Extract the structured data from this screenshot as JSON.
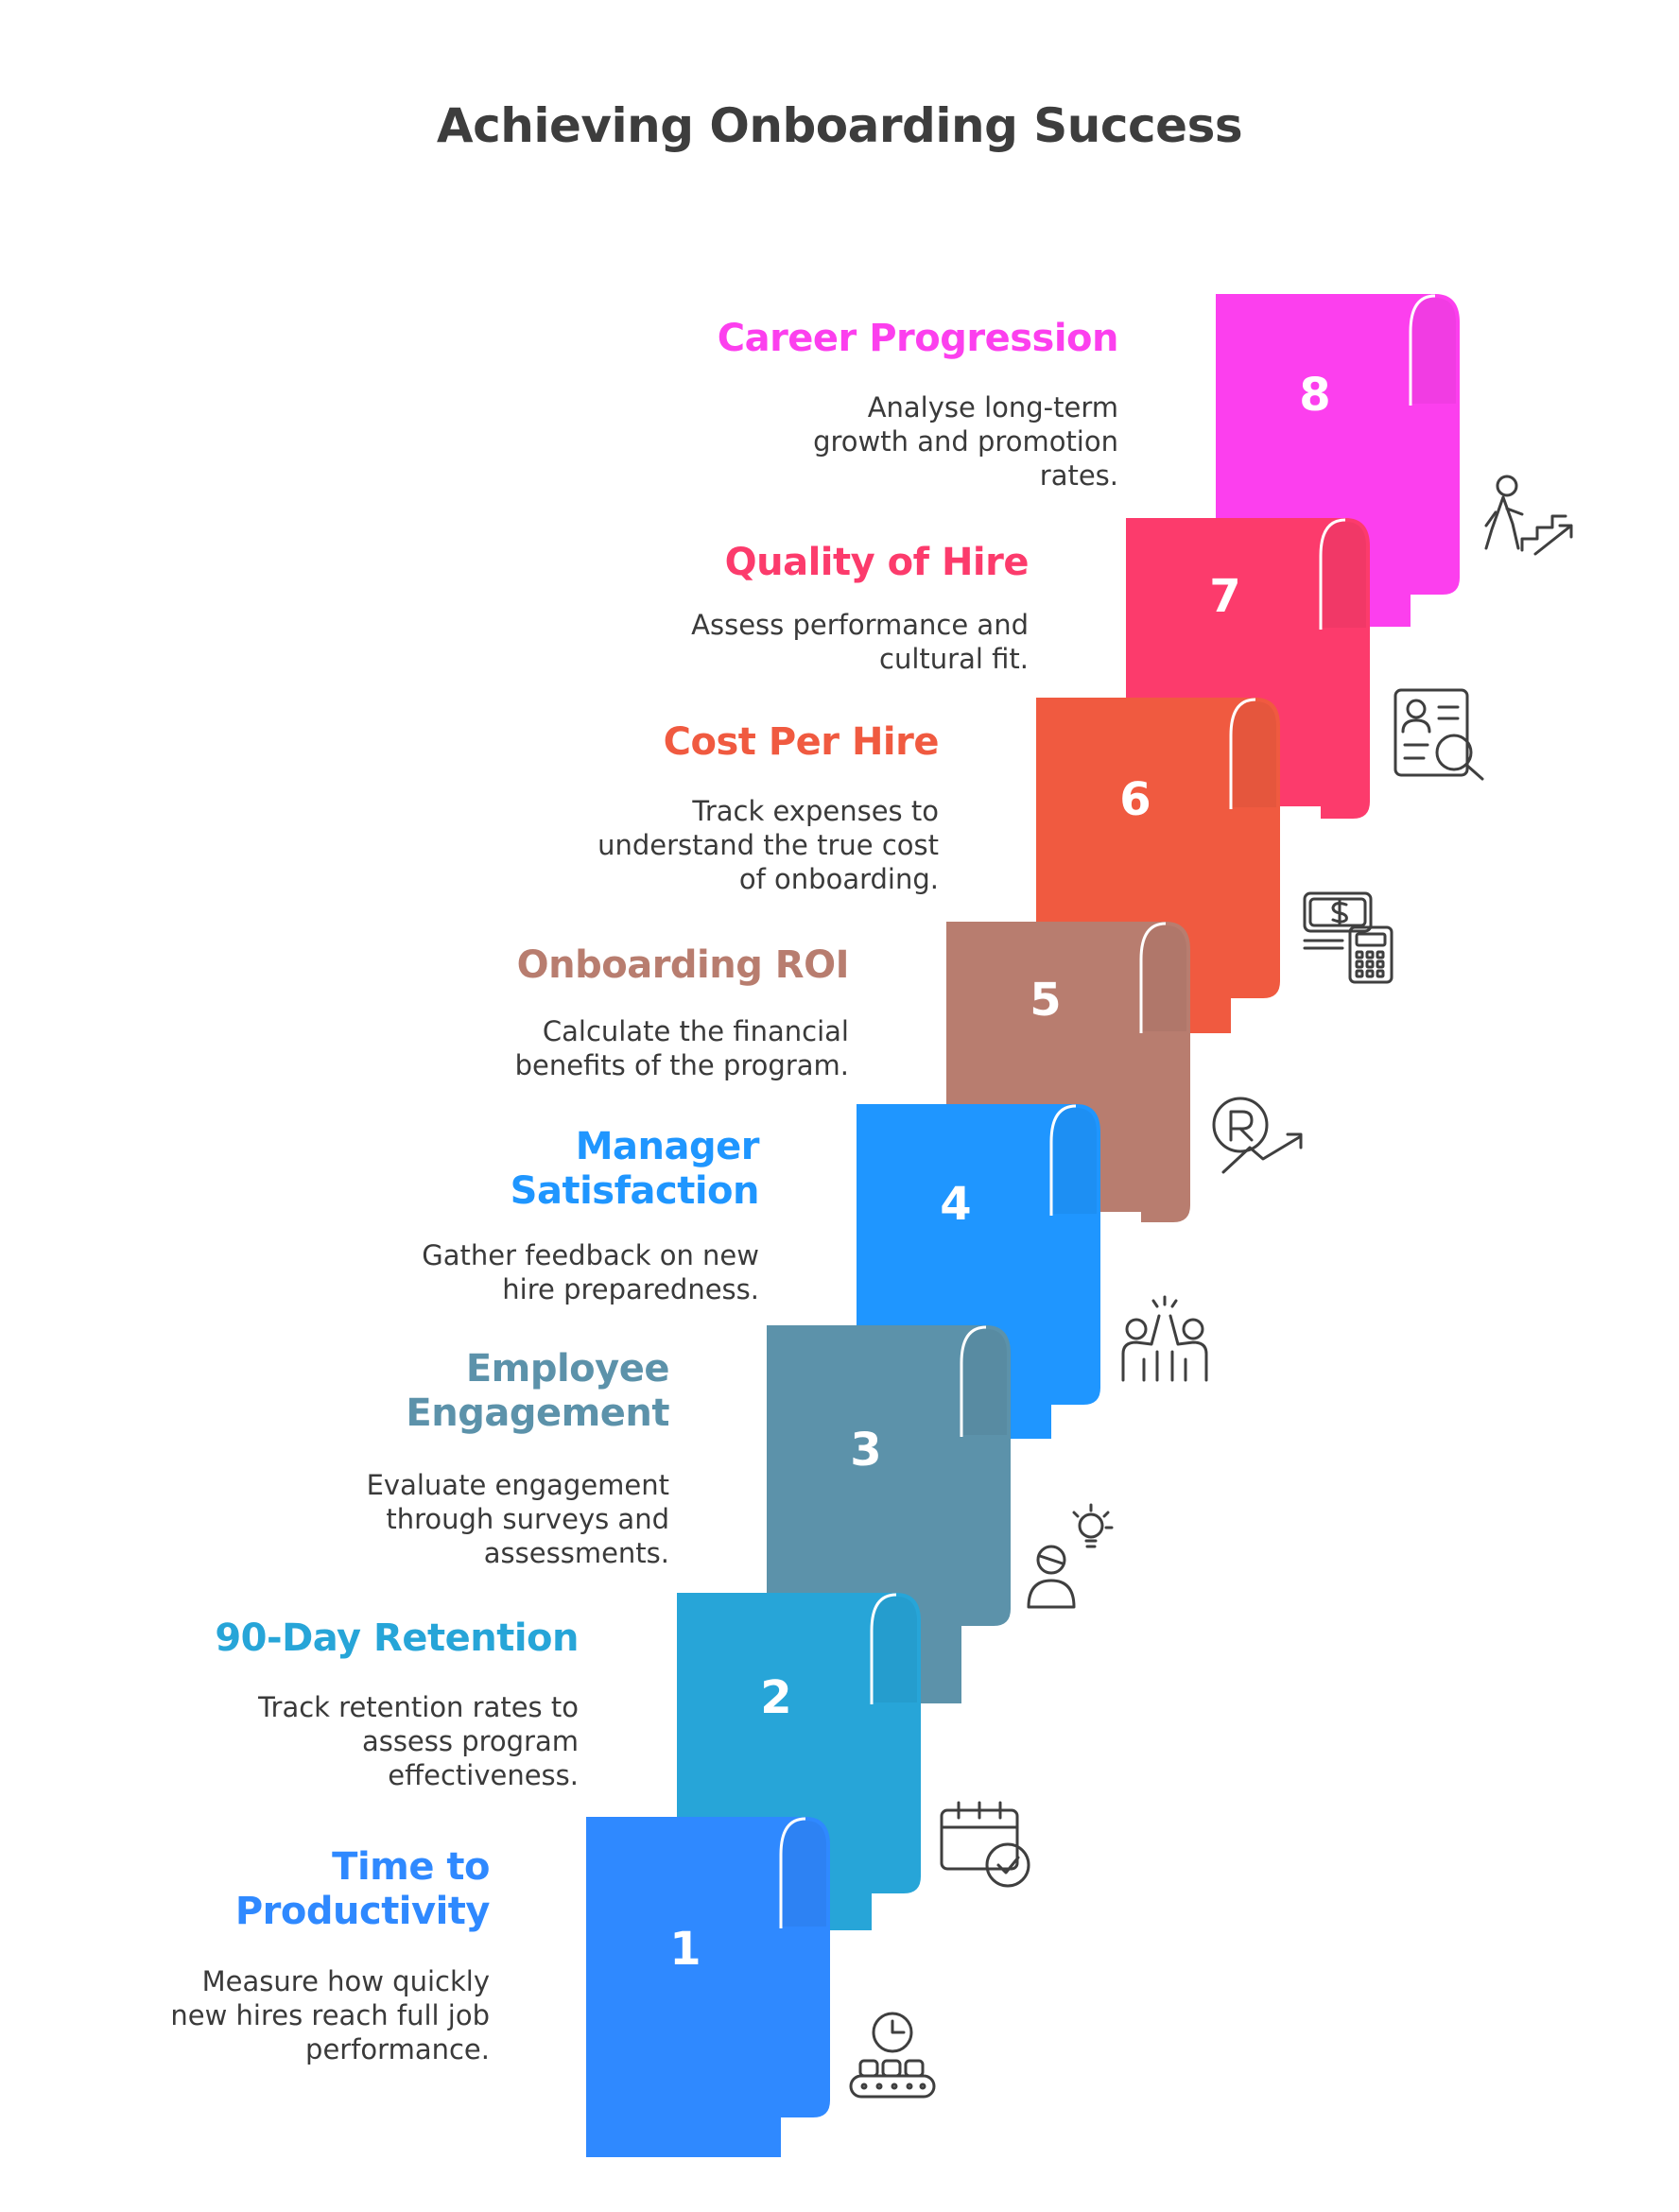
{
  "title": "Achieving Onboarding Success",
  "steps": [
    {
      "number": "1",
      "heading_lines": [
        "Time to",
        "Productivity"
      ],
      "desc_lines": [
        "Measure how quickly",
        "new hires reach full job",
        "performance."
      ],
      "color": "#2f89ff",
      "icon": "clock-conveyor-icon"
    },
    {
      "number": "2",
      "heading_lines": [
        "90-Day Retention"
      ],
      "desc_lines": [
        "Track retention rates to",
        "assess program",
        "effectiveness."
      ],
      "color": "#27a5d8",
      "icon": "calendar-check-icon"
    },
    {
      "number": "3",
      "heading_lines": [
        "Employee",
        "Engagement"
      ],
      "desc_lines": [
        "Evaluate engagement",
        "through surveys and",
        "assessments."
      ],
      "color": "#5c92aa",
      "icon": "person-idea-icon"
    },
    {
      "number": "4",
      "heading_lines": [
        "Manager",
        "Satisfaction"
      ],
      "desc_lines": [
        "Gather feedback on new",
        "hire preparedness."
      ],
      "color": "#1f96ff",
      "icon": "high-five-icon"
    },
    {
      "number": "5",
      "heading_lines": [
        "Onboarding ROI"
      ],
      "desc_lines": [
        "Calculate the financial",
        "benefits of the program."
      ],
      "color": "#b87d6f",
      "icon": "rand-growth-icon"
    },
    {
      "number": "6",
      "heading_lines": [
        "Cost Per Hire"
      ],
      "desc_lines": [
        "Track expenses to",
        "understand the true cost",
        "of onboarding."
      ],
      "color": "#f05a40",
      "icon": "money-calculator-icon"
    },
    {
      "number": "7",
      "heading_lines": [
        "Quality of Hire"
      ],
      "desc_lines": [
        "Assess performance and",
        "cultural fit."
      ],
      "color": "#fc3b6c",
      "icon": "profile-search-icon"
    },
    {
      "number": "8",
      "heading_lines": [
        "Career Progression"
      ],
      "desc_lines": [
        "Analyse long-term",
        "growth and promotion",
        "rates."
      ],
      "color": "#fc3fee",
      "icon": "person-stairs-icon"
    }
  ]
}
